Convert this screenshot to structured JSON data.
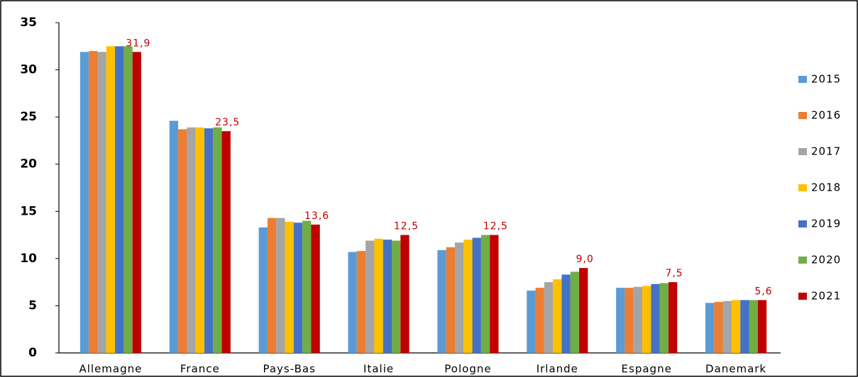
{
  "chart_data": {
    "type": "bar",
    "categories": [
      "Allemagne",
      "France",
      "Pays-Bas",
      "Italie",
      "Pologne",
      "Irlande",
      "Espagne",
      "Danemark"
    ],
    "series": [
      {
        "name": "2015",
        "color": "#5b9bd5",
        "values": [
          31.9,
          24.6,
          13.3,
          10.7,
          10.9,
          6.6,
          6.9,
          5.3
        ]
      },
      {
        "name": "2016",
        "color": "#ed7d31",
        "values": [
          32.0,
          23.7,
          14.3,
          10.8,
          11.2,
          6.9,
          6.9,
          5.4
        ]
      },
      {
        "name": "2017",
        "color": "#a5a5a5",
        "values": [
          31.9,
          23.9,
          14.3,
          11.9,
          11.7,
          7.5,
          7.0,
          5.5
        ]
      },
      {
        "name": "2018",
        "color": "#ffc000",
        "values": [
          32.5,
          23.9,
          13.9,
          12.1,
          12.0,
          7.8,
          7.1,
          5.6
        ]
      },
      {
        "name": "2019",
        "color": "#4472c4",
        "values": [
          32.5,
          23.8,
          13.8,
          12.0,
          12.2,
          8.3,
          7.3,
          5.6
        ]
      },
      {
        "name": "2020",
        "color": "#70ad47",
        "values": [
          32.5,
          23.9,
          14.0,
          11.9,
          12.5,
          8.6,
          7.4,
          5.6
        ]
      },
      {
        "name": "2021",
        "color": "#c00000",
        "values": [
          31.9,
          23.5,
          13.6,
          12.5,
          12.5,
          9.0,
          7.5,
          5.6
        ],
        "value_labels": [
          "31,9",
          "23,5",
          "13,6",
          "12,5",
          "12,5",
          "9,0",
          "7,5",
          "5,6"
        ]
      }
    ],
    "ylim": [
      0,
      35
    ],
    "yticks": [
      0,
      5,
      10,
      15,
      20,
      25,
      30,
      35
    ],
    "grid": false,
    "legend": "right"
  }
}
